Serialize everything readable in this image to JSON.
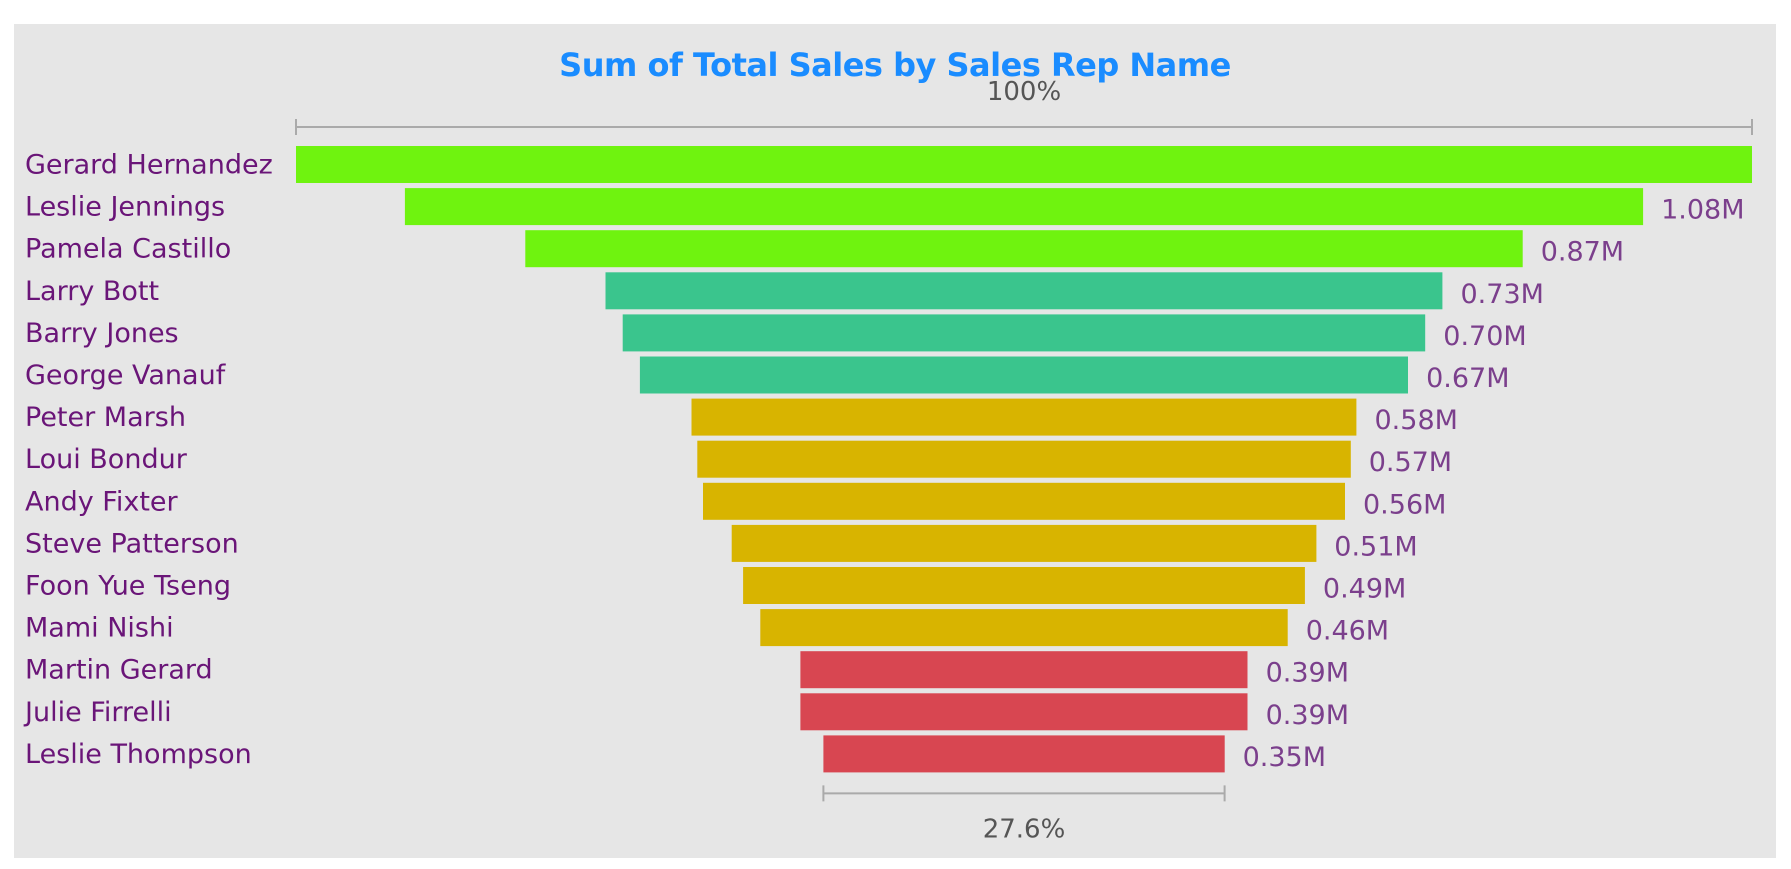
{
  "chart_data": {
    "type": "bar",
    "variant": "funnel",
    "title": "Sum of Total Sales by Sales Rep Name",
    "categories": [
      "Gerard Hernandez",
      "Leslie Jennings",
      "Pamela Castillo",
      "Larry Bott",
      "Barry Jones",
      "George Vanauf",
      "Peter Marsh",
      "Loui Bondur",
      "Andy Fixter",
      "Steve Patterson",
      "Foon Yue Tseng",
      "Mami Nishi",
      "Martin Gerard",
      "Julie Firrelli",
      "Leslie Thompson"
    ],
    "values": [
      1.27,
      1.08,
      0.87,
      0.73,
      0.7,
      0.67,
      0.58,
      0.57,
      0.56,
      0.51,
      0.49,
      0.46,
      0.39,
      0.39,
      0.35
    ],
    "value_labels": [
      "",
      "1.08M",
      "0.87M",
      "0.73M",
      "0.70M",
      "0.67M",
      "0.58M",
      "0.57M",
      "0.56M",
      "0.51M",
      "0.49M",
      "0.46M",
      "0.39M",
      "0.39M",
      "0.35M"
    ],
    "bar_colors": [
      "#6ff30f",
      "#6ff30f",
      "#6ff30f",
      "#3ac58d",
      "#3ac58d",
      "#3ac58d",
      "#d8b400",
      "#d8b400",
      "#d8b400",
      "#d8b400",
      "#d8b400",
      "#d8b400",
      "#d84651",
      "#d84651",
      "#d84651"
    ],
    "top_percent_label": "100%",
    "bottom_percent_label": "27.6%",
    "unit": "M"
  }
}
